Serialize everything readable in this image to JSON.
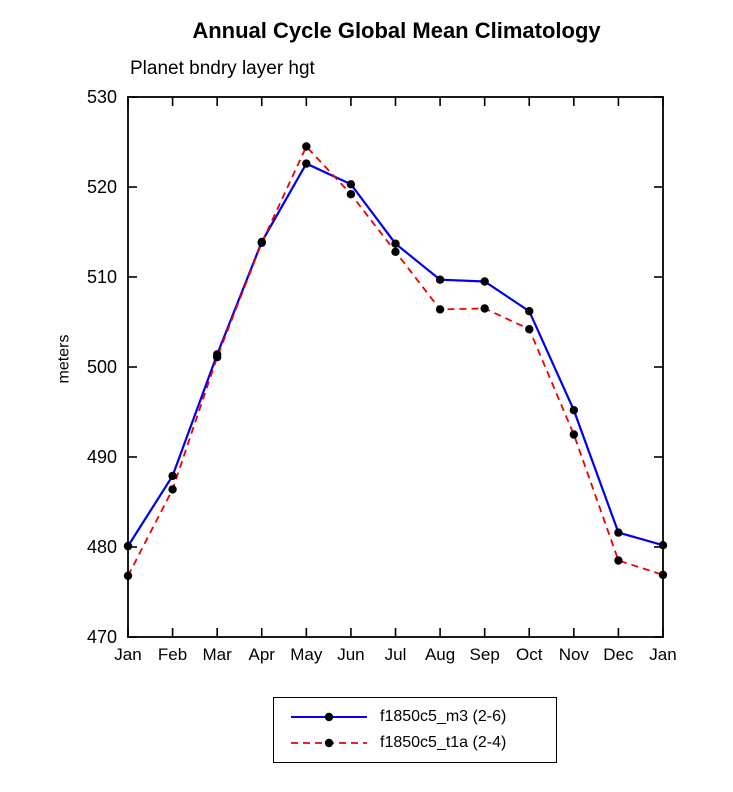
{
  "page": {
    "background": "#ffffff"
  },
  "chart_data": {
    "type": "line",
    "title": "Annual Cycle Global Mean Climatology",
    "subtitle": "Planet bndry layer hgt",
    "ylabel": "meters",
    "ylim": [
      470,
      530
    ],
    "ytick_step": 10,
    "grid": false,
    "legend_position": "bottom-center",
    "marker_color": "#000000",
    "categories": [
      "Jan",
      "Feb",
      "Mar",
      "Apr",
      "May",
      "Jun",
      "Jul",
      "Aug",
      "Sep",
      "Oct",
      "Nov",
      "Dec",
      "Jan"
    ],
    "series": [
      {
        "name": "f1850c5_m3 (2-6)",
        "color": "#0000ee",
        "style": "solid",
        "values": [
          480.1,
          487.9,
          501.4,
          513.9,
          522.6,
          520.3,
          513.7,
          509.7,
          509.5,
          506.2,
          495.2,
          481.6,
          480.2
        ]
      },
      {
        "name": "f1850c5_t1a (2-4)",
        "color": "#ee0000",
        "style": "dashed",
        "values": [
          476.8,
          486.4,
          501.1,
          513.8,
          524.5,
          519.2,
          512.8,
          506.4,
          506.5,
          504.2,
          492.5,
          478.5,
          476.9
        ]
      }
    ]
  }
}
